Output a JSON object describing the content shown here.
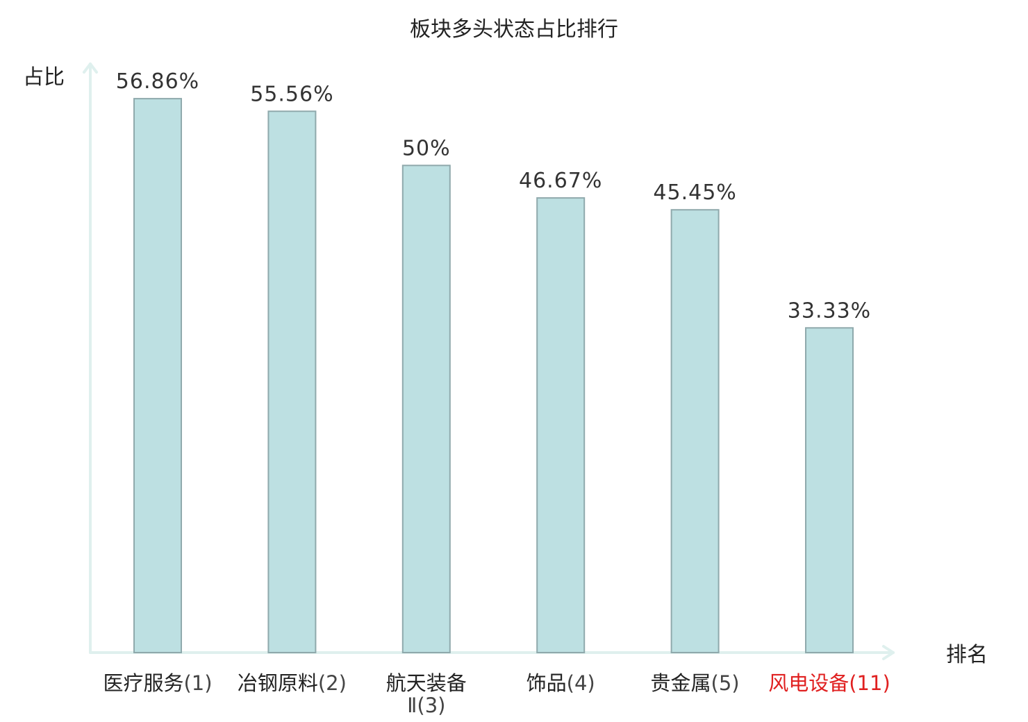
{
  "chart_data": {
    "type": "bar",
    "title": "板块多头状态占比排行",
    "ylabel": "占比",
    "xlabel": "排名",
    "ylim": [
      0,
      60
    ],
    "grid": false,
    "categories": [
      {
        "name": "医疗服务",
        "rank": "(1)",
        "highlight": false
      },
      {
        "name": "冶钢原料",
        "rank": "(2)",
        "highlight": false
      },
      {
        "name": "航天装备Ⅱ",
        "rank": "(3)",
        "highlight": false
      },
      {
        "name": "饰品",
        "rank": "(4)",
        "highlight": false
      },
      {
        "name": "贵金属",
        "rank": "(5)",
        "highlight": false
      },
      {
        "name": "风电设备",
        "rank": "(11)",
        "highlight": true
      }
    ],
    "values": [
      56.86,
      55.56,
      50,
      46.67,
      45.45,
      33.33
    ],
    "value_labels": [
      "56.86%",
      "55.56%",
      "50%",
      "46.67%",
      "45.45%",
      "33.33%"
    ]
  },
  "colors": {
    "bar_fill": "#bde0e2",
    "bar_stroke": "#8fa9ac",
    "axis": "#dff0ee",
    "highlight": "#e02020",
    "text": "#222222"
  }
}
